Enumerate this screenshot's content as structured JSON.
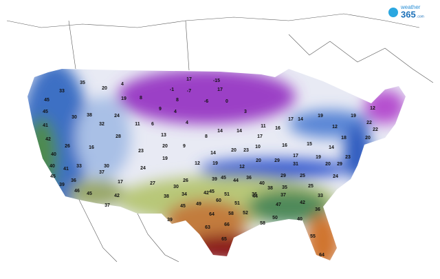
{
  "logo": {
    "prefix": "weather",
    "name": "365",
    "suffix": ".com"
  },
  "temperatures": [
    33,
    35,
    20,
    4,
    45,
    19,
    8,
    17,
    -15,
    17,
    -1,
    -7,
    -6,
    0,
    8,
    9,
    4,
    3,
    45,
    38,
    30,
    32,
    24,
    11,
    6,
    4,
    41,
    13,
    8,
    14,
    14,
    11,
    16,
    17,
    14,
    19,
    19,
    12,
    22,
    22,
    12,
    42,
    26,
    16,
    28,
    20,
    9,
    23,
    14,
    20,
    23,
    17,
    10,
    16,
    15,
    14,
    18,
    20,
    40,
    41,
    19,
    12,
    19,
    12,
    20,
    29,
    17,
    19,
    20,
    29,
    23,
    40,
    33,
    30,
    24,
    31,
    45,
    39,
    36,
    37,
    17,
    27,
    26,
    30,
    39,
    45,
    44,
    36,
    29,
    25,
    25,
    24,
    46,
    45,
    42,
    38,
    34,
    45,
    51,
    36,
    38,
    40,
    35,
    33,
    37,
    45,
    49,
    60,
    42,
    51,
    44,
    37,
    42,
    47,
    39,
    64,
    58,
    52,
    50,
    40,
    36,
    63,
    66,
    58,
    55,
    65,
    64
  ]
}
